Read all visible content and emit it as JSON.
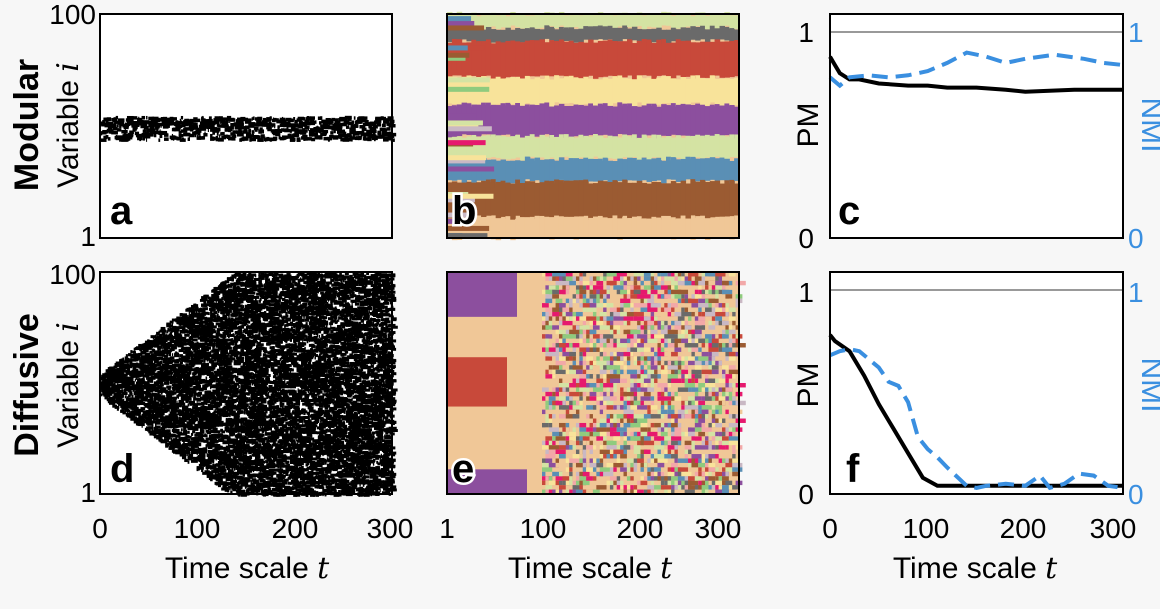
{
  "rows": [
    {
      "label": "Modular",
      "ylabel": "Variable",
      "yvar": "i",
      "yticks": [
        "100",
        "1"
      ]
    },
    {
      "label": "Diffusive",
      "ylabel": "Variable",
      "yvar": "i",
      "yticks": [
        "100",
        "1"
      ]
    }
  ],
  "panels": [
    "a",
    "b",
    "c",
    "d",
    "e",
    "f"
  ],
  "xaxis": {
    "label": "Time scale",
    "var": "t",
    "ticks_raster": [
      "0",
      "100",
      "200",
      "300"
    ],
    "ticks_cluster": [
      "1",
      "100",
      "200",
      "300"
    ],
    "ticks_line": [
      "0",
      "100",
      "200",
      "300"
    ]
  },
  "line_axes": {
    "left_label": "PM",
    "right_label": "NMI",
    "left_ticks": [
      "1",
      "0"
    ],
    "right_ticks": [
      "1",
      "0"
    ]
  },
  "colors": {
    "pm": "#000000",
    "nmi": "#3a8fe0",
    "ref": "#999999",
    "palette": [
      "#d4e3a3",
      "#c8493a",
      "#f8e39a",
      "#8c4f9e",
      "#5a8fb5",
      "#9b5b32",
      "#f0c797",
      "#6a6a6a",
      "#8fcb7e",
      "#e6196e",
      "#c9b8c4",
      "#f2a8a8"
    ]
  },
  "chart_data": [
    {
      "type": "scatter",
      "panel": "a",
      "title": "",
      "xlim": [
        0,
        300
      ],
      "ylim": [
        1,
        100
      ],
      "description_series": "band",
      "band": {
        "x": [
          0,
          300
        ],
        "center": 50,
        "halfwidth": [
          5,
          5
        ]
      }
    },
    {
      "type": "heatmap",
      "panel": "b",
      "xlim": [
        1,
        300
      ],
      "ylim": [
        1,
        100
      ]
    },
    {
      "type": "line",
      "panel": "c",
      "xlim": [
        0,
        300
      ],
      "ylim": [
        0,
        1
      ],
      "series": [
        {
          "name": "PM",
          "x": [
            0,
            5,
            10,
            20,
            30,
            50,
            80,
            100,
            120,
            150,
            180,
            200,
            250,
            300
          ],
          "y": [
            0.88,
            0.84,
            0.8,
            0.77,
            0.77,
            0.75,
            0.74,
            0.74,
            0.73,
            0.73,
            0.72,
            0.71,
            0.72,
            0.72
          ]
        },
        {
          "name": "NMI",
          "x": [
            0,
            10,
            20,
            40,
            60,
            80,
            100,
            120,
            140,
            160,
            180,
            200,
            230,
            260,
            280,
            300
          ],
          "y": [
            0.78,
            0.74,
            0.78,
            0.79,
            0.78,
            0.79,
            0.81,
            0.85,
            0.9,
            0.88,
            0.85,
            0.87,
            0.89,
            0.87,
            0.85,
            0.84
          ]
        }
      ],
      "ref": {
        "y": 1.0
      }
    },
    {
      "type": "scatter",
      "panel": "d",
      "title": "",
      "xlim": [
        0,
        300
      ],
      "ylim": [
        1,
        100
      ],
      "band": {
        "x": [
          0,
          300
        ],
        "center": 50,
        "halfwidth": [
          5,
          50
        ]
      }
    },
    {
      "type": "heatmap",
      "panel": "e",
      "xlim": [
        1,
        300
      ],
      "ylim": [
        1,
        100
      ]
    },
    {
      "type": "line",
      "panel": "f",
      "xlim": [
        0,
        300
      ],
      "ylim": [
        0,
        1
      ],
      "series": [
        {
          "name": "PM",
          "x": [
            0,
            5,
            20,
            35,
            50,
            65,
            80,
            95,
            110,
            130,
            150,
            200,
            250,
            300
          ],
          "y": [
            0.78,
            0.75,
            0.7,
            0.58,
            0.44,
            0.32,
            0.2,
            0.08,
            0.04,
            0.04,
            0.04,
            0.04,
            0.04,
            0.04
          ]
        },
        {
          "name": "NMI",
          "x": [
            0,
            10,
            20,
            30,
            40,
            50,
            60,
            70,
            80,
            90,
            100,
            110,
            120,
            140,
            150,
            160,
            180,
            200,
            215,
            225,
            240,
            255,
            270,
            285,
            300
          ],
          "y": [
            0.68,
            0.7,
            0.71,
            0.7,
            0.66,
            0.62,
            0.55,
            0.53,
            0.45,
            0.28,
            0.22,
            0.18,
            0.13,
            0.04,
            0.03,
            0.04,
            0.05,
            0.04,
            0.09,
            0.03,
            0.05,
            0.1,
            0.09,
            0.04,
            0.03
          ]
        }
      ],
      "ref": {
        "y": 1.0
      }
    }
  ]
}
